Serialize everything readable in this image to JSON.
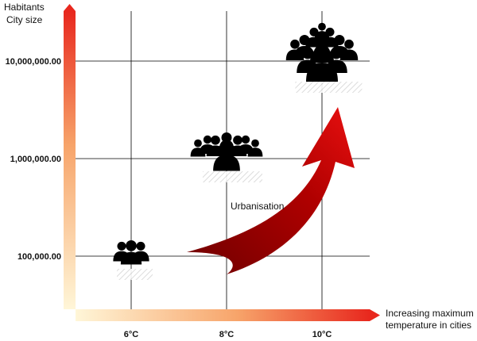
{
  "chart_data": {
    "type": "scatter",
    "ylabel": [
      "Habitants",
      "City size"
    ],
    "xlabel": [
      "Increasing maximum",
      "temperature in cities"
    ],
    "y_scale": "log",
    "x_ticks": [
      "6°C",
      "8°C",
      "10°C"
    ],
    "y_ticks": [
      "100,000.00",
      "1,000,000.00",
      "10,000,000.00"
    ],
    "y_tick_values": [
      100000,
      1000000,
      10000000
    ],
    "points": [
      {
        "x": "6°C",
        "y": 100000,
        "marker": "people-group-small"
      },
      {
        "x": "8°C",
        "y": 1000000,
        "marker": "people-group-medium"
      },
      {
        "x": "10°C",
        "y": 10000000,
        "marker": "people-group-large"
      }
    ],
    "annotation": "Urbanisation",
    "grid": true,
    "colors": {
      "axis_gradient_start": "#fff6d8",
      "axis_gradient_end": "#e8281e",
      "arrow_start": "#6e0000",
      "arrow_end": "#e01010",
      "marker": "#000000",
      "grid": "#000000"
    }
  }
}
